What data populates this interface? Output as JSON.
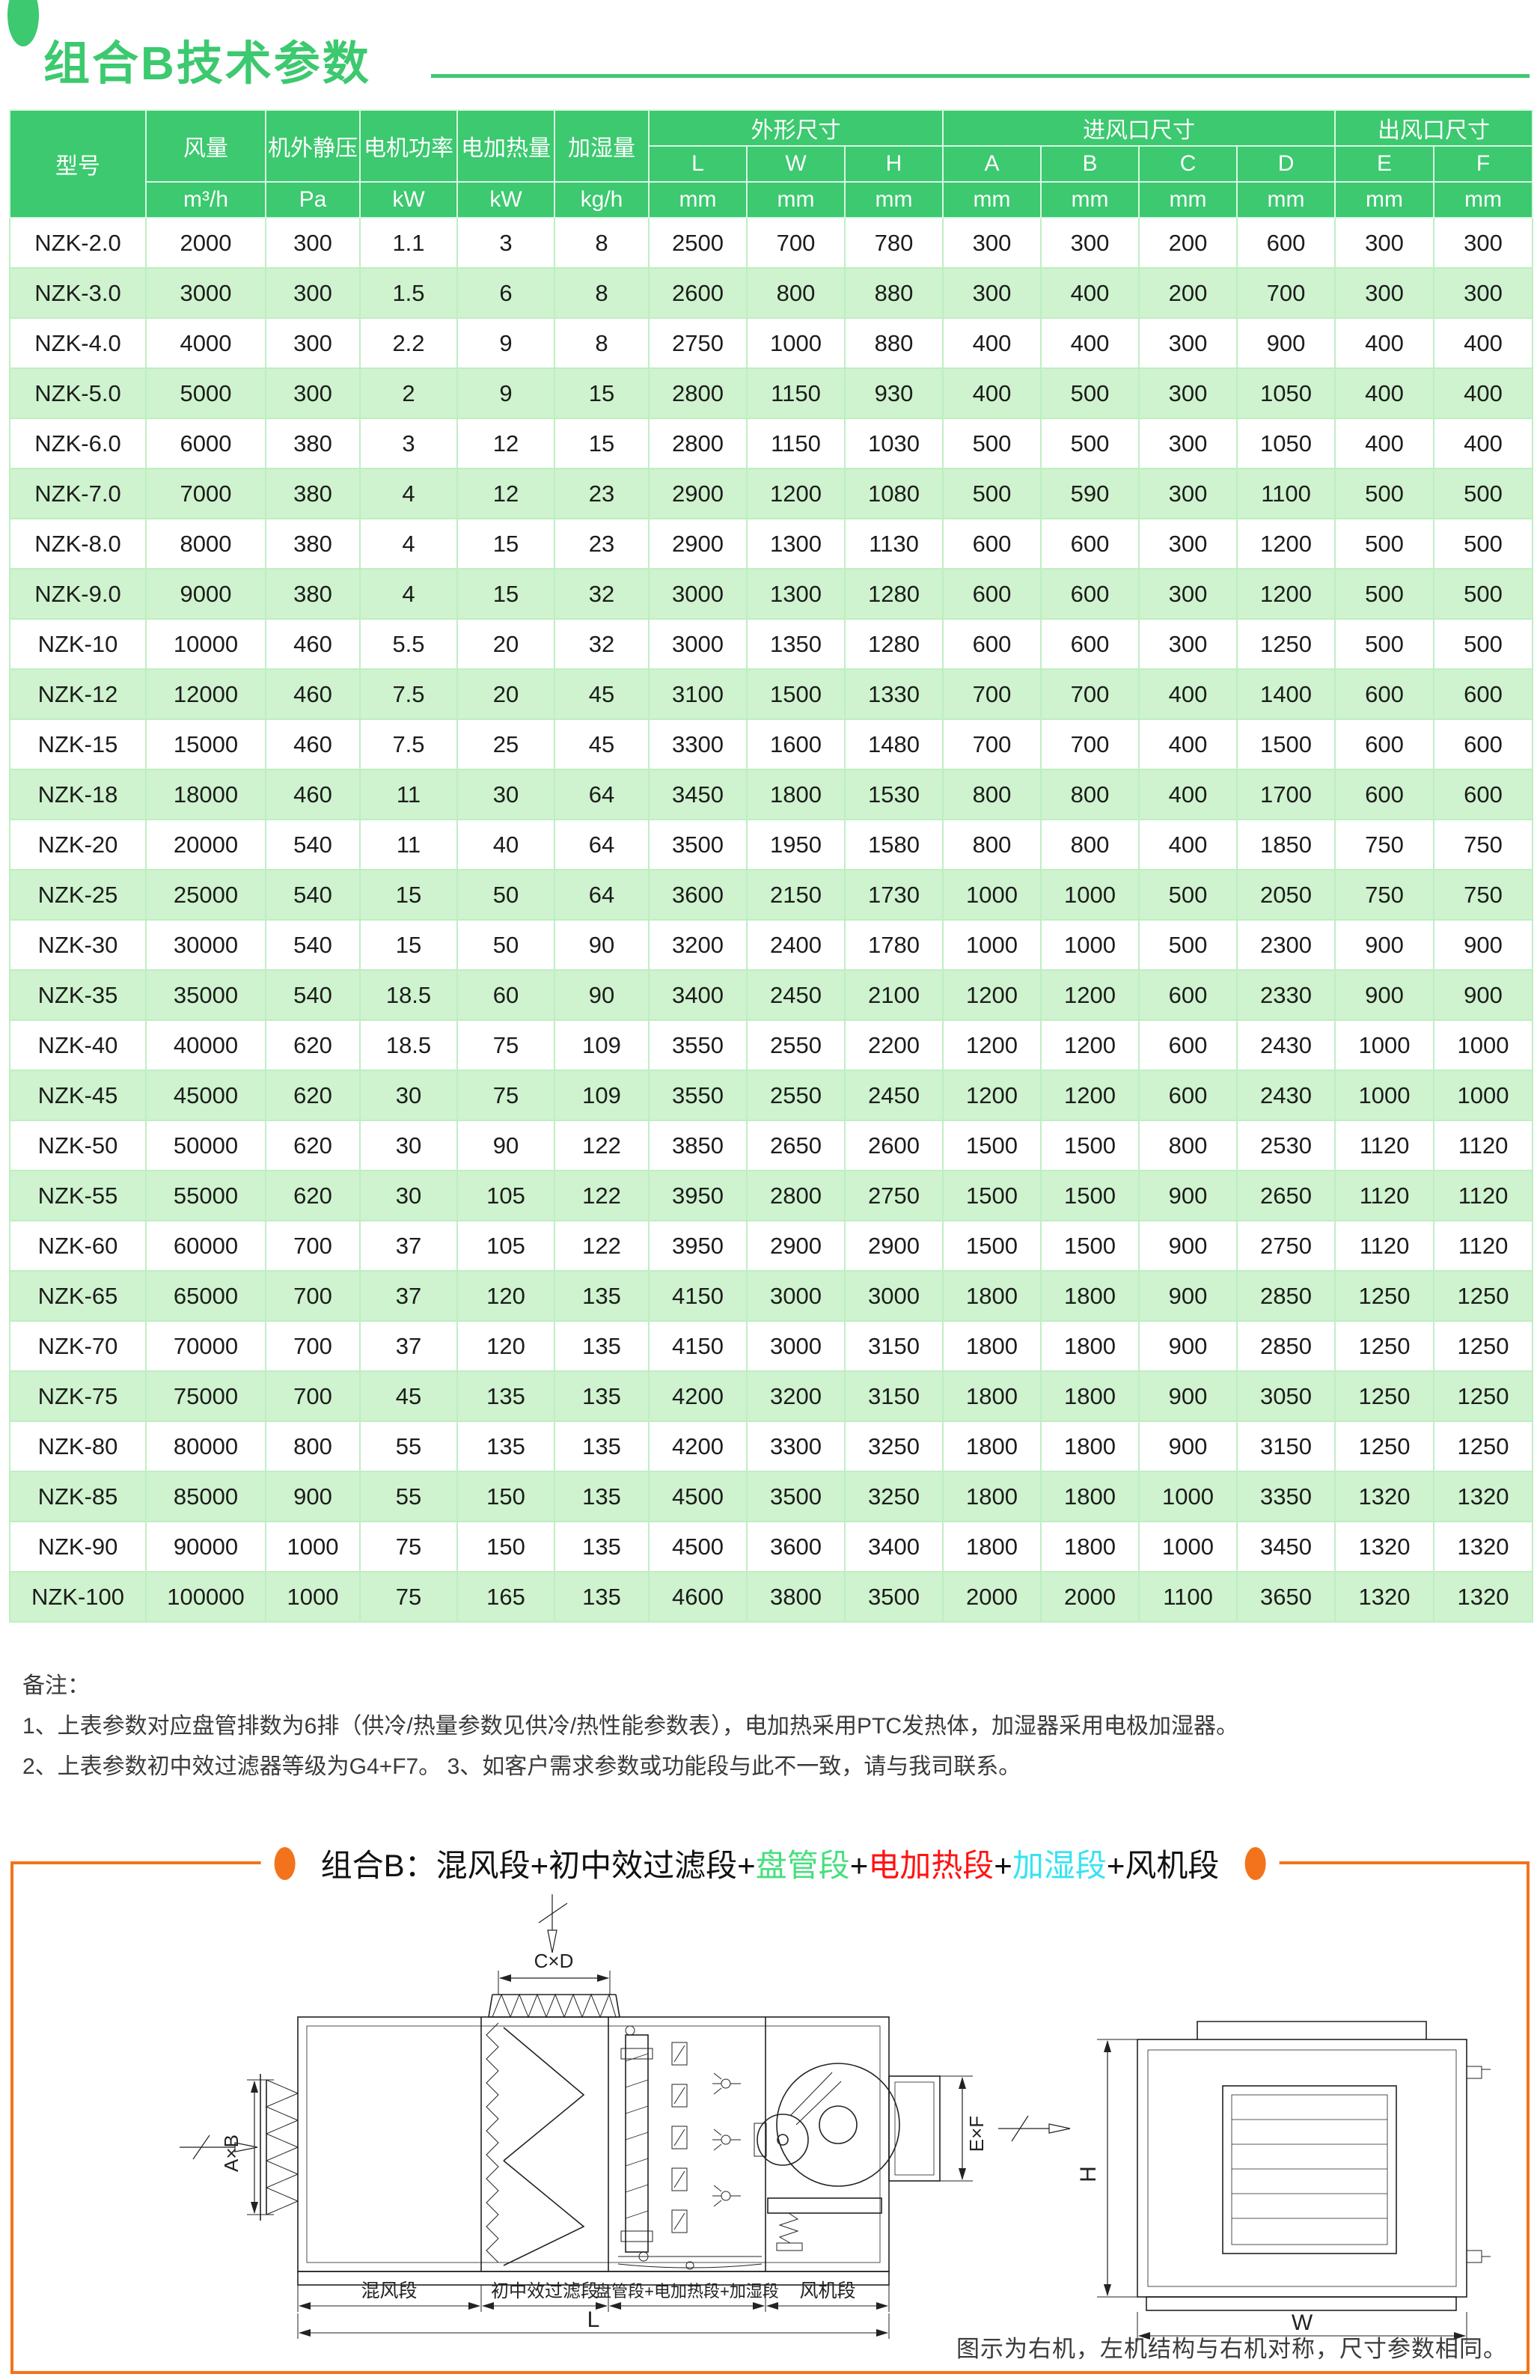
{
  "page": {
    "title": "组合B技术参数",
    "accent_green": "#3cc96f",
    "accent_orange": "#f3731c",
    "row_alt_green": "#cef3ce"
  },
  "table": {
    "header": {
      "col_model": "型号",
      "col_airflow": "风量",
      "col_esp": "机外静压",
      "col_motor": "电机功率",
      "col_heater": "电加热量",
      "col_humid": "加湿量",
      "grp_dims": "外形尺寸",
      "grp_inlet": "进风口尺寸",
      "grp_outlet": "出风口尺寸",
      "sub": [
        "L",
        "W",
        "H",
        "A",
        "B",
        "C",
        "D",
        "E",
        "F"
      ],
      "unit_airflow": "m³/h",
      "unit_pa": "Pa",
      "unit_kw": "kW",
      "unit_kgh": "kg/h",
      "unit_mm": "mm"
    },
    "rows": [
      [
        "NZK-2.0",
        "2000",
        "300",
        "1.1",
        "3",
        "8",
        "2500",
        "700",
        "780",
        "300",
        "300",
        "200",
        "600",
        "300",
        "300"
      ],
      [
        "NZK-3.0",
        "3000",
        "300",
        "1.5",
        "6",
        "8",
        "2600",
        "800",
        "880",
        "300",
        "400",
        "200",
        "700",
        "300",
        "300"
      ],
      [
        "NZK-4.0",
        "4000",
        "300",
        "2.2",
        "9",
        "8",
        "2750",
        "1000",
        "880",
        "400",
        "400",
        "300",
        "900",
        "400",
        "400"
      ],
      [
        "NZK-5.0",
        "5000",
        "300",
        "2",
        "9",
        "15",
        "2800",
        "1150",
        "930",
        "400",
        "500",
        "300",
        "1050",
        "400",
        "400"
      ],
      [
        "NZK-6.0",
        "6000",
        "380",
        "3",
        "12",
        "15",
        "2800",
        "1150",
        "1030",
        "500",
        "500",
        "300",
        "1050",
        "400",
        "400"
      ],
      [
        "NZK-7.0",
        "7000",
        "380",
        "4",
        "12",
        "23",
        "2900",
        "1200",
        "1080",
        "500",
        "590",
        "300",
        "1100",
        "500",
        "500"
      ],
      [
        "NZK-8.0",
        "8000",
        "380",
        "4",
        "15",
        "23",
        "2900",
        "1300",
        "1130",
        "600",
        "600",
        "300",
        "1200",
        "500",
        "500"
      ],
      [
        "NZK-9.0",
        "9000",
        "380",
        "4",
        "15",
        "32",
        "3000",
        "1300",
        "1280",
        "600",
        "600",
        "300",
        "1200",
        "500",
        "500"
      ],
      [
        "NZK-10",
        "10000",
        "460",
        "5.5",
        "20",
        "32",
        "3000",
        "1350",
        "1280",
        "600",
        "600",
        "300",
        "1250",
        "500",
        "500"
      ],
      [
        "NZK-12",
        "12000",
        "460",
        "7.5",
        "20",
        "45",
        "3100",
        "1500",
        "1330",
        "700",
        "700",
        "400",
        "1400",
        "600",
        "600"
      ],
      [
        "NZK-15",
        "15000",
        "460",
        "7.5",
        "25",
        "45",
        "3300",
        "1600",
        "1480",
        "700",
        "700",
        "400",
        "1500",
        "600",
        "600"
      ],
      [
        "NZK-18",
        "18000",
        "460",
        "11",
        "30",
        "64",
        "3450",
        "1800",
        "1530",
        "800",
        "800",
        "400",
        "1700",
        "600",
        "600"
      ],
      [
        "NZK-20",
        "20000",
        "540",
        "11",
        "40",
        "64",
        "3500",
        "1950",
        "1580",
        "800",
        "800",
        "400",
        "1850",
        "750",
        "750"
      ],
      [
        "NZK-25",
        "25000",
        "540",
        "15",
        "50",
        "64",
        "3600",
        "2150",
        "1730",
        "1000",
        "1000",
        "500",
        "2050",
        "750",
        "750"
      ],
      [
        "NZK-30",
        "30000",
        "540",
        "15",
        "50",
        "90",
        "3200",
        "2400",
        "1780",
        "1000",
        "1000",
        "500",
        "2300",
        "900",
        "900"
      ],
      [
        "NZK-35",
        "35000",
        "540",
        "18.5",
        "60",
        "90",
        "3400",
        "2450",
        "2100",
        "1200",
        "1200",
        "600",
        "2330",
        "900",
        "900"
      ],
      [
        "NZK-40",
        "40000",
        "620",
        "18.5",
        "75",
        "109",
        "3550",
        "2550",
        "2200",
        "1200",
        "1200",
        "600",
        "2430",
        "1000",
        "1000"
      ],
      [
        "NZK-45",
        "45000",
        "620",
        "30",
        "75",
        "109",
        "3550",
        "2550",
        "2450",
        "1200",
        "1200",
        "600",
        "2430",
        "1000",
        "1000"
      ],
      [
        "NZK-50",
        "50000",
        "620",
        "30",
        "90",
        "122",
        "3850",
        "2650",
        "2600",
        "1500",
        "1500",
        "800",
        "2530",
        "1120",
        "1120"
      ],
      [
        "NZK-55",
        "55000",
        "620",
        "30",
        "105",
        "122",
        "3950",
        "2800",
        "2750",
        "1500",
        "1500",
        "900",
        "2650",
        "1120",
        "1120"
      ],
      [
        "NZK-60",
        "60000",
        "700",
        "37",
        "105",
        "122",
        "3950",
        "2900",
        "2900",
        "1500",
        "1500",
        "900",
        "2750",
        "1120",
        "1120"
      ],
      [
        "NZK-65",
        "65000",
        "700",
        "37",
        "120",
        "135",
        "4150",
        "3000",
        "3000",
        "1800",
        "1800",
        "900",
        "2850",
        "1250",
        "1250"
      ],
      [
        "NZK-70",
        "70000",
        "700",
        "37",
        "120",
        "135",
        "4150",
        "3000",
        "3150",
        "1800",
        "1800",
        "900",
        "2850",
        "1250",
        "1250"
      ],
      [
        "NZK-75",
        "75000",
        "700",
        "45",
        "135",
        "135",
        "4200",
        "3200",
        "3150",
        "1800",
        "1800",
        "900",
        "3050",
        "1250",
        "1250"
      ],
      [
        "NZK-80",
        "80000",
        "800",
        "55",
        "135",
        "135",
        "4200",
        "3300",
        "3250",
        "1800",
        "1800",
        "900",
        "3150",
        "1250",
        "1250"
      ],
      [
        "NZK-85",
        "85000",
        "900",
        "55",
        "150",
        "135",
        "4500",
        "3500",
        "3250",
        "1800",
        "1800",
        "1000",
        "3350",
        "1320",
        "1320"
      ],
      [
        "NZK-90",
        "90000",
        "1000",
        "75",
        "150",
        "135",
        "4500",
        "3600",
        "3400",
        "1800",
        "1800",
        "1000",
        "3450",
        "1320",
        "1320"
      ],
      [
        "NZK-100",
        "100000",
        "1000",
        "75",
        "165",
        "135",
        "4600",
        "3800",
        "3500",
        "2000",
        "2000",
        "1100",
        "3650",
        "1320",
        "1320"
      ]
    ]
  },
  "notes": {
    "title": "备注：",
    "line1": "1、上表参数对应盘管排数为6排（供冷/热量参数见供冷/热性能参数表），电加热采用PTC发热体，加湿器采用电极加湿器。",
    "line2": "2、上表参数初中效过滤器等级为G4+F7。  3、如客户需求参数或功能段与此不一致，请与我司联系。"
  },
  "diagram": {
    "combo_title": {
      "prefix": "组合B：混风段+初中效过滤段+",
      "coil": "盘管段",
      "plus1": "+",
      "heater": "电加热段",
      "plus2": "+",
      "humid": "加湿段",
      "suffix": "+风机段"
    },
    "labels": {
      "cxd": "C×D",
      "axb": "A×B",
      "exf": "E×F",
      "h": "H",
      "w": "W",
      "l": "L",
      "seg_mix": "混风段",
      "seg_filter": "初中效过滤段",
      "seg_coil": "盘管段+电加热段+加湿段",
      "seg_fan": "风机段"
    },
    "note": "图示为右机，左机结构与右机对称，尺寸参数相同。"
  }
}
